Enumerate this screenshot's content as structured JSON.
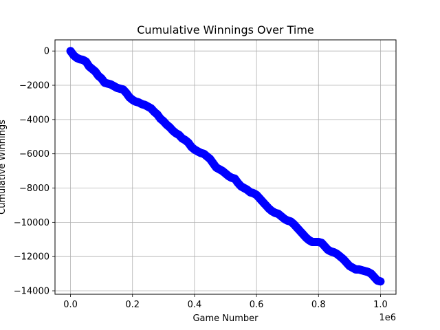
{
  "chart_data": {
    "type": "scatter",
    "title": "Cumulative Winnings Over Time",
    "xlabel": "Game Number",
    "ylabel": "Cumulative Winnings",
    "x_offset_label": "1e6",
    "x_tick_labels": [
      "0.0",
      "0.2",
      "0.4",
      "0.6",
      "0.8",
      "1.0"
    ],
    "x_tick_values": [
      0,
      200000,
      400000,
      600000,
      800000,
      1000000
    ],
    "y_tick_labels": [
      "0",
      "−2000",
      "−4000",
      "−6000",
      "−8000",
      "−10000",
      "−12000",
      "−14000"
    ],
    "y_tick_values": [
      0,
      -2000,
      -4000,
      -6000,
      -8000,
      -10000,
      -12000,
      -14000
    ],
    "xlim": [
      -50000,
      1050000
    ],
    "ylim": [
      -14200,
      650
    ],
    "grid": true,
    "marker_color": "#0000ff",
    "series": [
      {
        "x": [
          0,
          10000,
          20000,
          30000,
          40000,
          50000,
          60000,
          70000,
          80000,
          90000,
          100000,
          110000,
          120000,
          130000,
          140000,
          150000,
          160000,
          170000,
          180000,
          190000,
          200000,
          210000,
          220000,
          230000,
          240000,
          250000,
          260000,
          270000,
          280000,
          290000,
          300000,
          310000,
          320000,
          330000,
          340000,
          350000,
          360000,
          370000,
          380000,
          390000,
          400000,
          410000,
          420000,
          430000,
          440000,
          450000,
          460000,
          470000,
          480000,
          490000,
          500000,
          510000,
          520000,
          530000,
          540000,
          550000,
          560000,
          570000,
          580000,
          590000,
          600000,
          610000,
          620000,
          630000,
          640000,
          650000,
          660000,
          670000,
          680000,
          690000,
          700000,
          710000,
          720000,
          730000,
          740000,
          750000,
          760000,
          770000,
          780000,
          790000,
          800000,
          810000,
          820000,
          830000,
          840000,
          850000,
          860000,
          870000,
          880000,
          890000,
          900000,
          910000,
          920000,
          930000,
          940000,
          950000,
          960000,
          970000,
          980000,
          990000,
          1000000
        ],
        "y": [
          0,
          -250,
          -400,
          -480,
          -520,
          -620,
          -900,
          -1050,
          -1200,
          -1450,
          -1600,
          -1850,
          -1900,
          -1950,
          -2050,
          -2150,
          -2200,
          -2250,
          -2450,
          -2700,
          -2850,
          -2950,
          -3000,
          -3100,
          -3150,
          -3250,
          -3350,
          -3550,
          -3700,
          -3950,
          -4100,
          -4300,
          -4450,
          -4650,
          -4800,
          -4900,
          -5100,
          -5200,
          -5350,
          -5600,
          -5750,
          -5850,
          -5950,
          -6000,
          -6150,
          -6300,
          -6550,
          -6800,
          -6900,
          -7000,
          -7150,
          -7300,
          -7400,
          -7450,
          -7700,
          -7900,
          -8000,
          -8100,
          -8250,
          -8300,
          -8400,
          -8600,
          -8800,
          -9000,
          -9200,
          -9350,
          -9450,
          -9500,
          -9650,
          -9800,
          -9900,
          -9950,
          -10100,
          -10300,
          -10500,
          -10700,
          -10900,
          -11050,
          -11150,
          -11150,
          -11150,
          -11200,
          -11400,
          -11600,
          -11700,
          -11750,
          -11850,
          -12000,
          -12150,
          -12350,
          -12550,
          -12650,
          -12750,
          -12750,
          -12800,
          -12850,
          -12900,
          -13000,
          -13200,
          -13400,
          -13450
        ]
      }
    ]
  }
}
